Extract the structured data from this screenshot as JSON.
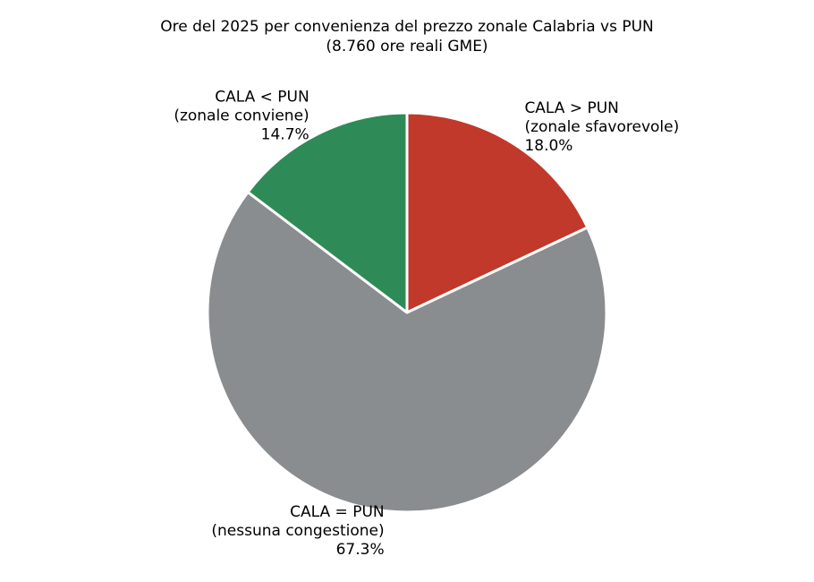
{
  "chart_data": {
    "type": "pie",
    "title": "Ore del 2025 per convenienza del prezzo zonale Calabria vs PUN",
    "subtitle": "(8.760 ore reali GME)",
    "categories": [
      "CALA > PUN",
      "CALA = PUN",
      "CALA < PUN"
    ],
    "descriptions": [
      "(zonale sfavorevole)",
      "(nessuna congestione)",
      "(zonale conviene)"
    ],
    "values": [
      18.0,
      67.3,
      14.7
    ],
    "value_labels": [
      "18.0%",
      "67.3%",
      "14.7%"
    ],
    "colors": [
      "#c0392b",
      "#8a8d8f",
      "#2e8b57"
    ]
  }
}
